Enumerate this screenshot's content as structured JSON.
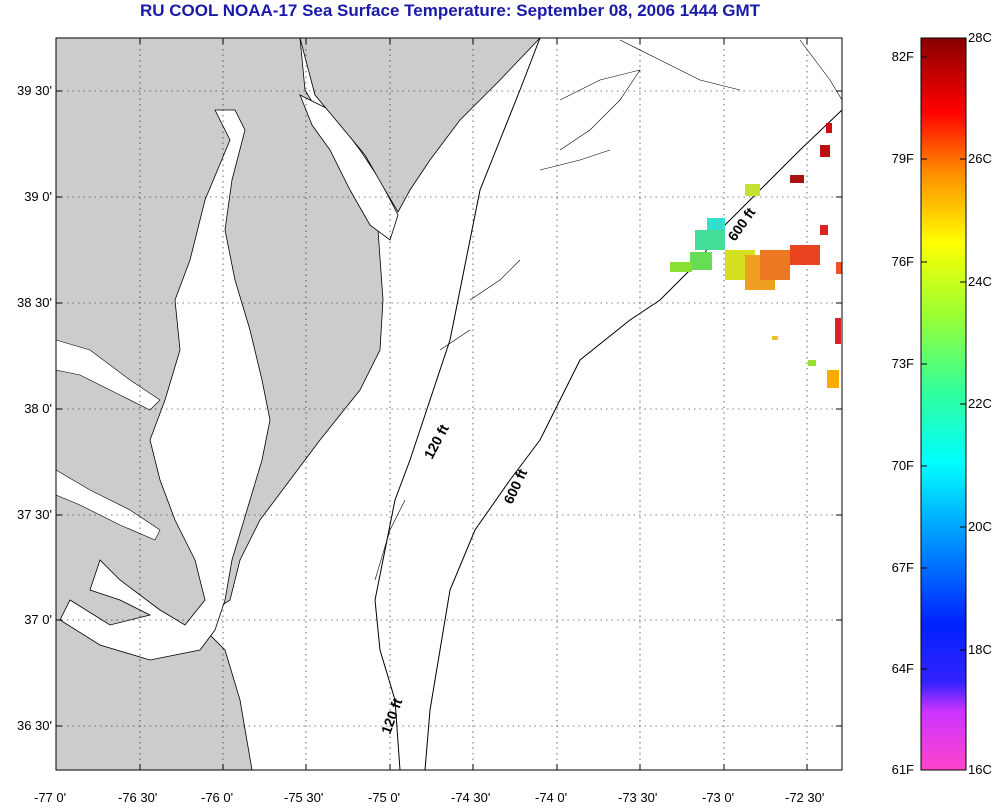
{
  "title": "RU COOL  NOAA-17  Sea Surface Temperature:  September 08, 2006 1444 GMT",
  "lat_labels": [
    "39 30'",
    "39 0'",
    "38 30'",
    "38 0'",
    "37 30'",
    "37 0'",
    "36 30'"
  ],
  "lon_labels": [
    "-77 0'",
    "-76 30'",
    "-76 0'",
    "-75 30'",
    "-75 0'",
    "-74 30'",
    "-74 0'",
    "-73 30'",
    "-73 0'",
    "-72 30'"
  ],
  "contours": {
    "label_120_a": "120 ft",
    "label_120_b": "120 ft",
    "label_600_a": "600 ft",
    "label_600_b": "600 ft"
  },
  "colorbar": {
    "fahrenheit": [
      "82F",
      "79F",
      "76F",
      "73F",
      "70F",
      "67F",
      "64F",
      "61F"
    ],
    "celsius": [
      "28C",
      "26C",
      "24C",
      "22C",
      "20C",
      "18C",
      "16C"
    ]
  },
  "colors": {
    "title": "#1a1aa8",
    "land": "#cccccc",
    "water": "#ffffff",
    "grid": "#000000"
  }
}
